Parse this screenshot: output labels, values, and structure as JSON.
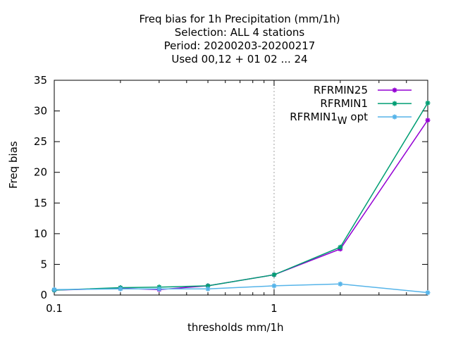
{
  "chart_data": {
    "type": "line",
    "title_lines": [
      "Freq bias  for 1h Precipitation (mm/1h)",
      "Selection: ALL      4 stations",
      "Period: 20200203-20200217",
      "Used  00,12  + 01 02 ... 24"
    ],
    "xlabel": "thresholds mm/1h",
    "ylabel": "Freq bias",
    "x_scale": "log",
    "xlim": [
      0.1,
      5
    ],
    "ylim": [
      0,
      35
    ],
    "x_ticks": [
      {
        "value": 0.1,
        "label": "0.1"
      },
      {
        "value": 1,
        "label": "1"
      }
    ],
    "y_ticks": [
      0,
      5,
      10,
      15,
      20,
      25,
      30,
      35
    ],
    "grid": "dotted at x=1",
    "legend_position": "top-right",
    "x": [
      0.1,
      0.2,
      0.3,
      0.5,
      1,
      2,
      5
    ],
    "series": [
      {
        "name": "RFRMIN25",
        "color": "#9400d3",
        "values": [
          0.8,
          1.1,
          0.9,
          1.5,
          3.3,
          7.5,
          28.5
        ]
      },
      {
        "name": "RFRMIN1",
        "color": "#009e73",
        "values": [
          0.8,
          1.2,
          1.3,
          1.5,
          3.3,
          7.8,
          31.3
        ]
      },
      {
        "name": "RFRMIN1",
        "name_subscript": "W",
        "name_suffix": "opt",
        "color": "#56b4e9",
        "values": [
          0.9,
          1.0,
          1.0,
          1.0,
          1.5,
          1.8,
          0.4
        ]
      }
    ]
  }
}
